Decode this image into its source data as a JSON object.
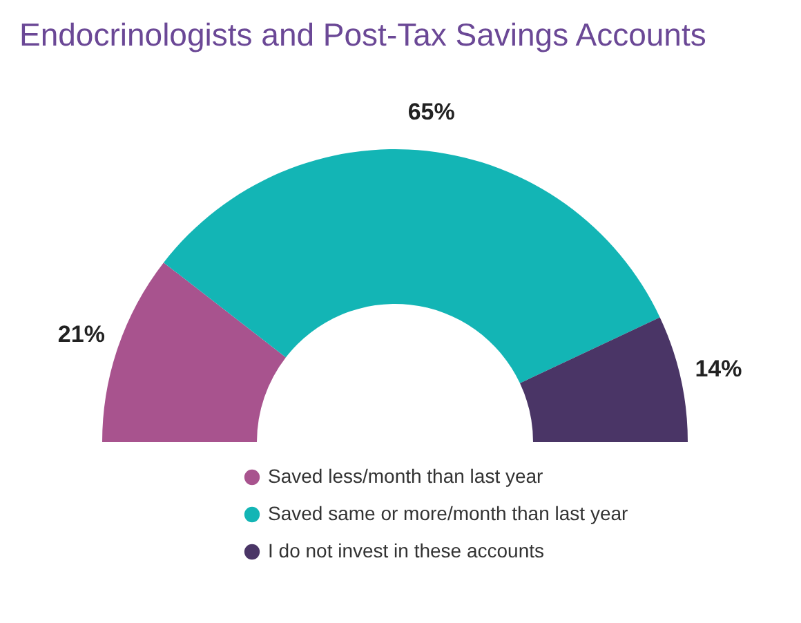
{
  "chart_data": {
    "type": "donut",
    "title": "Endocrinologists and Post-Tax Savings Accounts",
    "categories": [
      "Saved less/month than last year",
      "Saved same or more/month than last year",
      "I do not invest in these accounts"
    ],
    "values": [
      21,
      65,
      14
    ],
    "colors": [
      "#a8538e",
      "#13b5b5",
      "#4a3566"
    ],
    "value_labels": [
      "21%",
      "65%",
      "14%"
    ],
    "legend": "bottom"
  }
}
